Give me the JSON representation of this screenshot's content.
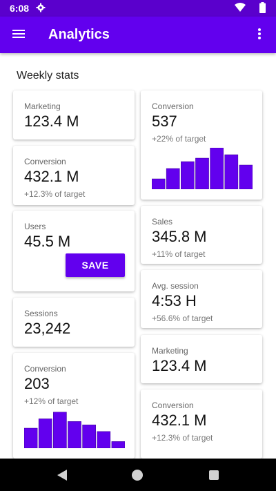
{
  "status_bar": {
    "time": "6:08",
    "icons": [
      "gear-icon",
      "wifi-icon",
      "battery-icon"
    ]
  },
  "app_bar": {
    "title": "Analytics",
    "menu_icon": "hamburger-menu-icon",
    "more_icon": "more-vertical-icon"
  },
  "colors": {
    "primary": "#6200ee",
    "status_bar": "#5a00cc",
    "bar_fill": "#6200ee"
  },
  "section": {
    "title": "Weekly stats"
  },
  "cards": {
    "left": [
      {
        "label": "Marketing",
        "value": "123.4 M"
      },
      {
        "label": "Conversion",
        "value": "432.1 M",
        "sub": "+12.3% of target"
      },
      {
        "label": "Users",
        "value": "45.5 M",
        "button": "SAVE"
      },
      {
        "label": "Sessions",
        "value": "23,242"
      },
      {
        "label": "Conversion",
        "value": "203",
        "sub": "+12% of target",
        "bars": [
          30,
          44,
          54,
          40,
          35,
          25,
          10
        ]
      }
    ],
    "right": [
      {
        "label": "Conversion",
        "value": "537",
        "sub": "+22% of target",
        "bars": [
          15,
          30,
          40,
          45,
          60,
          50,
          35
        ]
      },
      {
        "label": "Sales",
        "value": "345.8 M",
        "sub": "+11% of target"
      },
      {
        "label": "Avg. session",
        "value": "4:53 H",
        "sub": "+56.6% of target"
      },
      {
        "label": "Marketing",
        "value": "123.4 M"
      },
      {
        "label": "Conversion",
        "value": "432.1 M",
        "sub": "+12.3% of target"
      }
    ]
  },
  "nav_bar": {
    "icons": [
      "back-icon",
      "home-icon",
      "recents-icon"
    ]
  }
}
